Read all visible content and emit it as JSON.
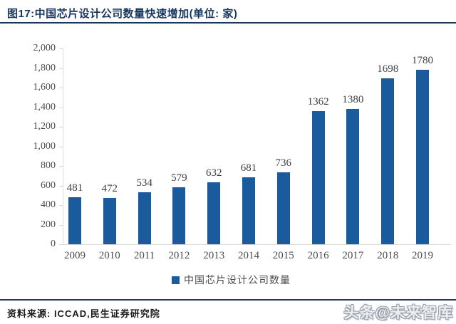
{
  "title": "图17:中国芯片设计公司数量快速增加(单位: 家)",
  "chart_data": {
    "type": "bar",
    "title": "图17:中国芯片设计公司数量快速增加(单位: 家)",
    "categories": [
      "2009",
      "2010",
      "2011",
      "2012",
      "2013",
      "2014",
      "2015",
      "2016",
      "2017",
      "2018",
      "2019"
    ],
    "values": [
      481,
      472,
      534,
      579,
      632,
      681,
      736,
      1362,
      1380,
      1698,
      1780
    ],
    "legend": "中国芯片设计公司数量",
    "legend_position": "bottom",
    "xlabel": "",
    "ylabel": "",
    "ylim": [
      0,
      2000
    ],
    "ytick_step": 200,
    "ytick_labels": [
      "2,000",
      "1,800",
      "1,600",
      "1,400",
      "1,200",
      "1,000",
      "800",
      "600",
      "400",
      "200",
      "0"
    ],
    "grid": false,
    "bar_color": "#1A5B9D",
    "data_labels_shown": true
  },
  "footer": {
    "source": "资料来源: ICCAD,民生证券研究院"
  },
  "watermark": "头条@未来智库"
}
